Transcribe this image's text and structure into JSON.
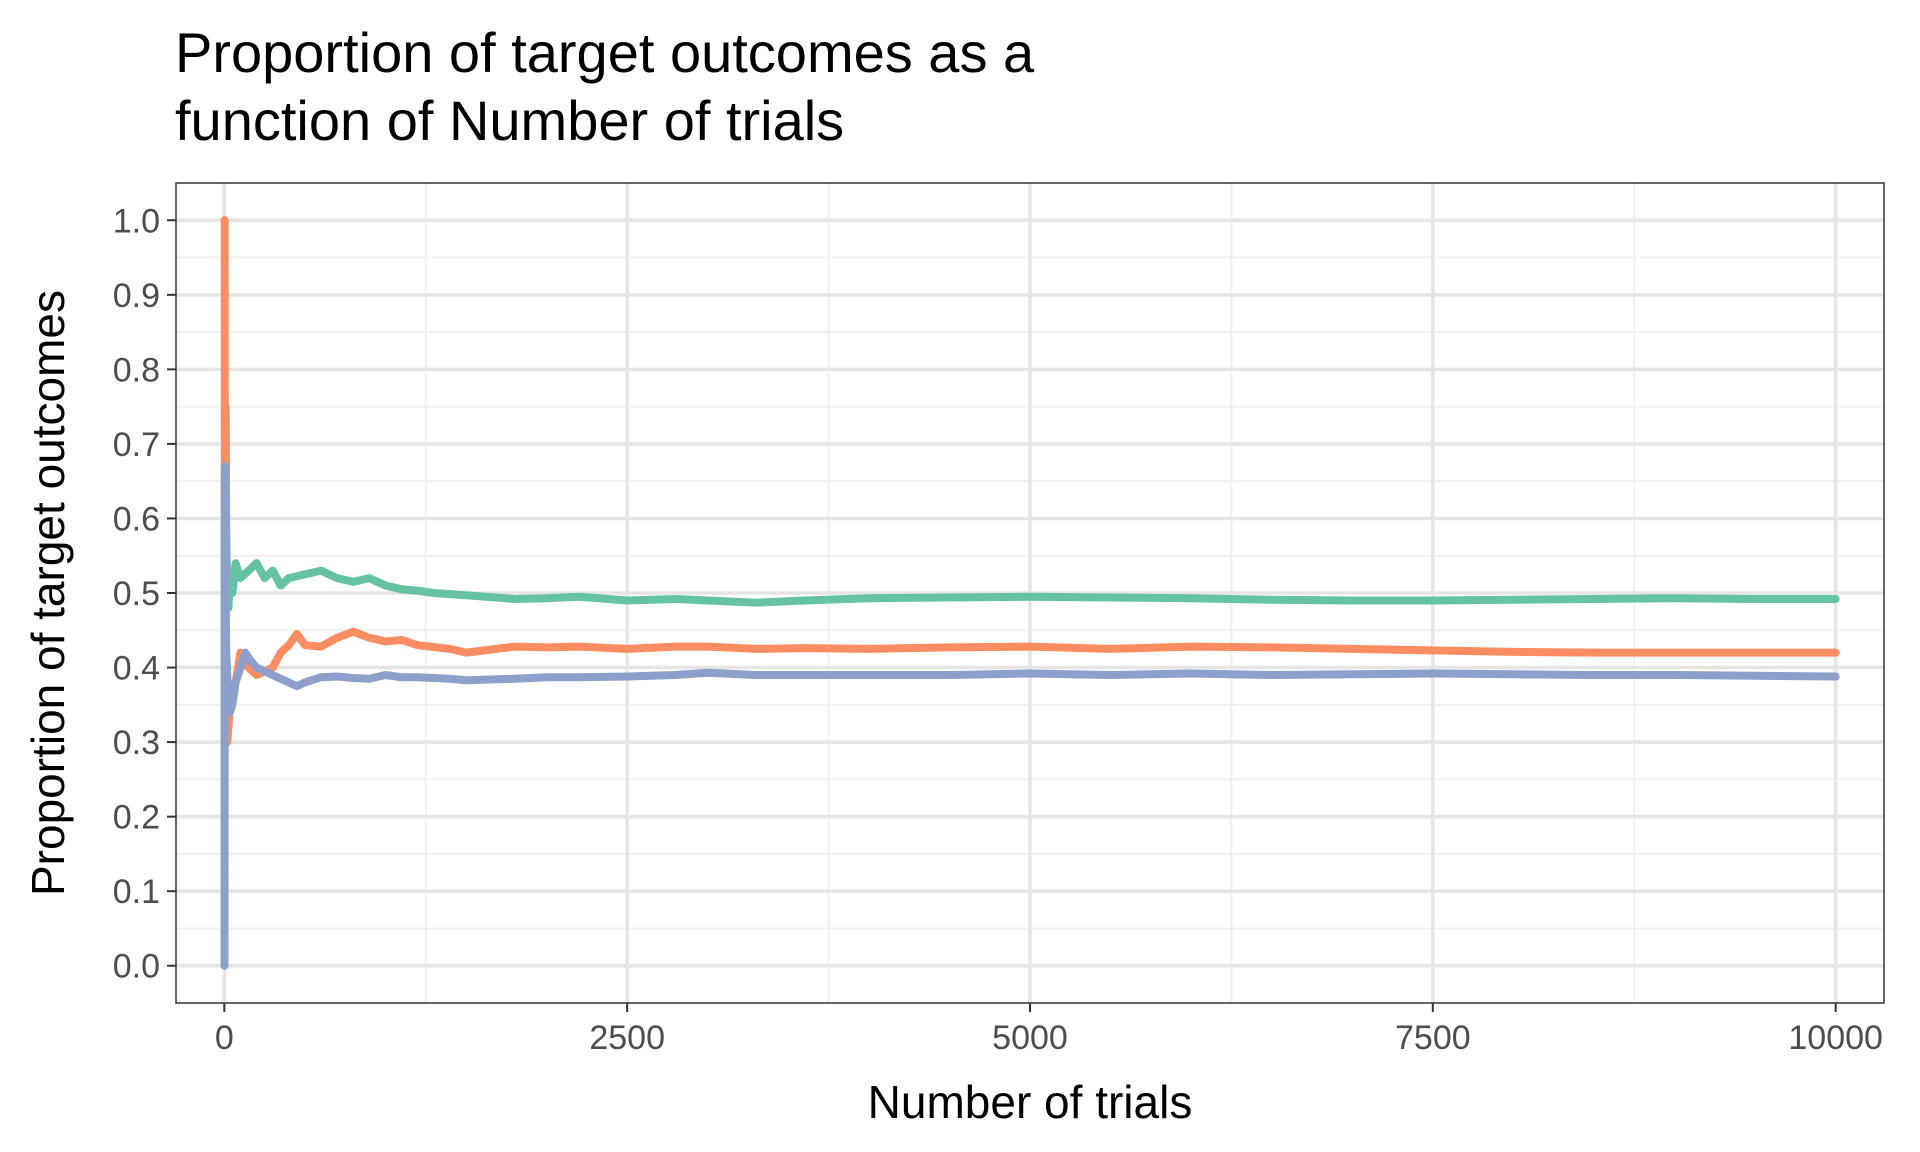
{
  "chart_data": {
    "type": "line",
    "title_line1": "Proportion of target outcomes as a",
    "title_line2": "function of Number of trials",
    "xlabel": "Number of trials",
    "ylabel": "Proportion of target outcomes",
    "xlim": [
      -300,
      10300
    ],
    "ylim": [
      -0.05,
      1.05
    ],
    "x_ticks": [
      0,
      2500,
      5000,
      7500,
      10000
    ],
    "x_tick_labels": [
      "0",
      "2500",
      "5000",
      "7500",
      "10000"
    ],
    "y_ticks": [
      0.0,
      0.1,
      0.2,
      0.3,
      0.4,
      0.5,
      0.6,
      0.7,
      0.8,
      0.9,
      1.0
    ],
    "y_tick_labels": [
      "0.0",
      "0.1",
      "0.2",
      "0.3",
      "0.4",
      "0.5",
      "0.6",
      "0.7",
      "0.8",
      "0.9",
      "1.0"
    ],
    "grid": true,
    "legend": "none",
    "colors": {
      "panel_border": "#333333",
      "grid_major": "#e5e5e5",
      "grid_minor": "#f0f0f0"
    },
    "series": [
      {
        "color": "#66c2a5",
        "points": [
          [
            1,
            0
          ],
          [
            2,
            0.5
          ],
          [
            3,
            0.67
          ],
          [
            5,
            0.6
          ],
          [
            8,
            0.75
          ],
          [
            12,
            0.58
          ],
          [
            18,
            0.5
          ],
          [
            25,
            0.48
          ],
          [
            35,
            0.52
          ],
          [
            50,
            0.5
          ],
          [
            70,
            0.54
          ],
          [
            100,
            0.52
          ],
          [
            150,
            0.53
          ],
          [
            200,
            0.54
          ],
          [
            250,
            0.52
          ],
          [
            300,
            0.53
          ],
          [
            350,
            0.51
          ],
          [
            400,
            0.52
          ],
          [
            500,
            0.525
          ],
          [
            600,
            0.53
          ],
          [
            700,
            0.52
          ],
          [
            800,
            0.515
          ],
          [
            900,
            0.52
          ],
          [
            1000,
            0.51
          ],
          [
            1100,
            0.505
          ],
          [
            1200,
            0.503
          ],
          [
            1300,
            0.5
          ],
          [
            1500,
            0.497
          ],
          [
            1800,
            0.492
          ],
          [
            2000,
            0.493
          ],
          [
            2200,
            0.495
          ],
          [
            2500,
            0.49
          ],
          [
            2800,
            0.492
          ],
          [
            3000,
            0.49
          ],
          [
            3300,
            0.487
          ],
          [
            3600,
            0.49
          ],
          [
            4000,
            0.493
          ],
          [
            4500,
            0.494
          ],
          [
            5000,
            0.495
          ],
          [
            5500,
            0.494
          ],
          [
            6000,
            0.493
          ],
          [
            6500,
            0.491
          ],
          [
            7000,
            0.49
          ],
          [
            7500,
            0.49
          ],
          [
            8000,
            0.491
          ],
          [
            8500,
            0.492
          ],
          [
            9000,
            0.493
          ],
          [
            9500,
            0.492
          ],
          [
            10000,
            0.492
          ]
        ]
      },
      {
        "color": "#fc8d62",
        "points": [
          [
            1,
            1.0
          ],
          [
            2,
            1.0
          ],
          [
            3,
            0.67
          ],
          [
            5,
            0.4
          ],
          [
            8,
            0.38
          ],
          [
            12,
            0.33
          ],
          [
            18,
            0.3
          ],
          [
            25,
            0.32
          ],
          [
            35,
            0.35
          ],
          [
            50,
            0.37
          ],
          [
            70,
            0.38
          ],
          [
            100,
            0.42
          ],
          [
            150,
            0.4
          ],
          [
            200,
            0.39
          ],
          [
            250,
            0.395
          ],
          [
            300,
            0.4
          ],
          [
            350,
            0.42
          ],
          [
            400,
            0.43
          ],
          [
            450,
            0.445
          ],
          [
            500,
            0.43
          ],
          [
            600,
            0.428
          ],
          [
            700,
            0.44
          ],
          [
            800,
            0.448
          ],
          [
            900,
            0.44
          ],
          [
            1000,
            0.435
          ],
          [
            1100,
            0.437
          ],
          [
            1200,
            0.43
          ],
          [
            1400,
            0.425
          ],
          [
            1500,
            0.42
          ],
          [
            1800,
            0.428
          ],
          [
            2000,
            0.427
          ],
          [
            2200,
            0.428
          ],
          [
            2500,
            0.425
          ],
          [
            2800,
            0.428
          ],
          [
            3000,
            0.428
          ],
          [
            3300,
            0.425
          ],
          [
            3600,
            0.426
          ],
          [
            4000,
            0.425
          ],
          [
            4500,
            0.427
          ],
          [
            5000,
            0.428
          ],
          [
            5500,
            0.425
          ],
          [
            6000,
            0.428
          ],
          [
            6500,
            0.427
          ],
          [
            7000,
            0.425
          ],
          [
            7500,
            0.423
          ],
          [
            8000,
            0.421
          ],
          [
            8500,
            0.42
          ],
          [
            9000,
            0.42
          ],
          [
            9500,
            0.42
          ],
          [
            10000,
            0.42
          ]
        ]
      },
      {
        "color": "#8da0cb",
        "points": [
          [
            1,
            0
          ],
          [
            2,
            0.5
          ],
          [
            3,
            0.67
          ],
          [
            5,
            0.6
          ],
          [
            8,
            0.5
          ],
          [
            12,
            0.42
          ],
          [
            18,
            0.39
          ],
          [
            25,
            0.36
          ],
          [
            35,
            0.34
          ],
          [
            50,
            0.35
          ],
          [
            70,
            0.38
          ],
          [
            100,
            0.4
          ],
          [
            130,
            0.42
          ],
          [
            160,
            0.41
          ],
          [
            200,
            0.4
          ],
          [
            250,
            0.395
          ],
          [
            300,
            0.39
          ],
          [
            350,
            0.385
          ],
          [
            400,
            0.38
          ],
          [
            450,
            0.375
          ],
          [
            500,
            0.38
          ],
          [
            600,
            0.387
          ],
          [
            700,
            0.388
          ],
          [
            800,
            0.386
          ],
          [
            900,
            0.385
          ],
          [
            1000,
            0.39
          ],
          [
            1100,
            0.387
          ],
          [
            1200,
            0.387
          ],
          [
            1400,
            0.385
          ],
          [
            1500,
            0.383
          ],
          [
            1800,
            0.385
          ],
          [
            2000,
            0.387
          ],
          [
            2200,
            0.387
          ],
          [
            2500,
            0.388
          ],
          [
            2800,
            0.39
          ],
          [
            3000,
            0.393
          ],
          [
            3300,
            0.39
          ],
          [
            3600,
            0.39
          ],
          [
            4000,
            0.39
          ],
          [
            4500,
            0.39
          ],
          [
            5000,
            0.392
          ],
          [
            5500,
            0.39
          ],
          [
            6000,
            0.392
          ],
          [
            6500,
            0.39
          ],
          [
            7000,
            0.391
          ],
          [
            7500,
            0.392
          ],
          [
            8000,
            0.391
          ],
          [
            8500,
            0.39
          ],
          [
            9000,
            0.39
          ],
          [
            9500,
            0.389
          ],
          [
            10000,
            0.388
          ]
        ]
      }
    ]
  }
}
